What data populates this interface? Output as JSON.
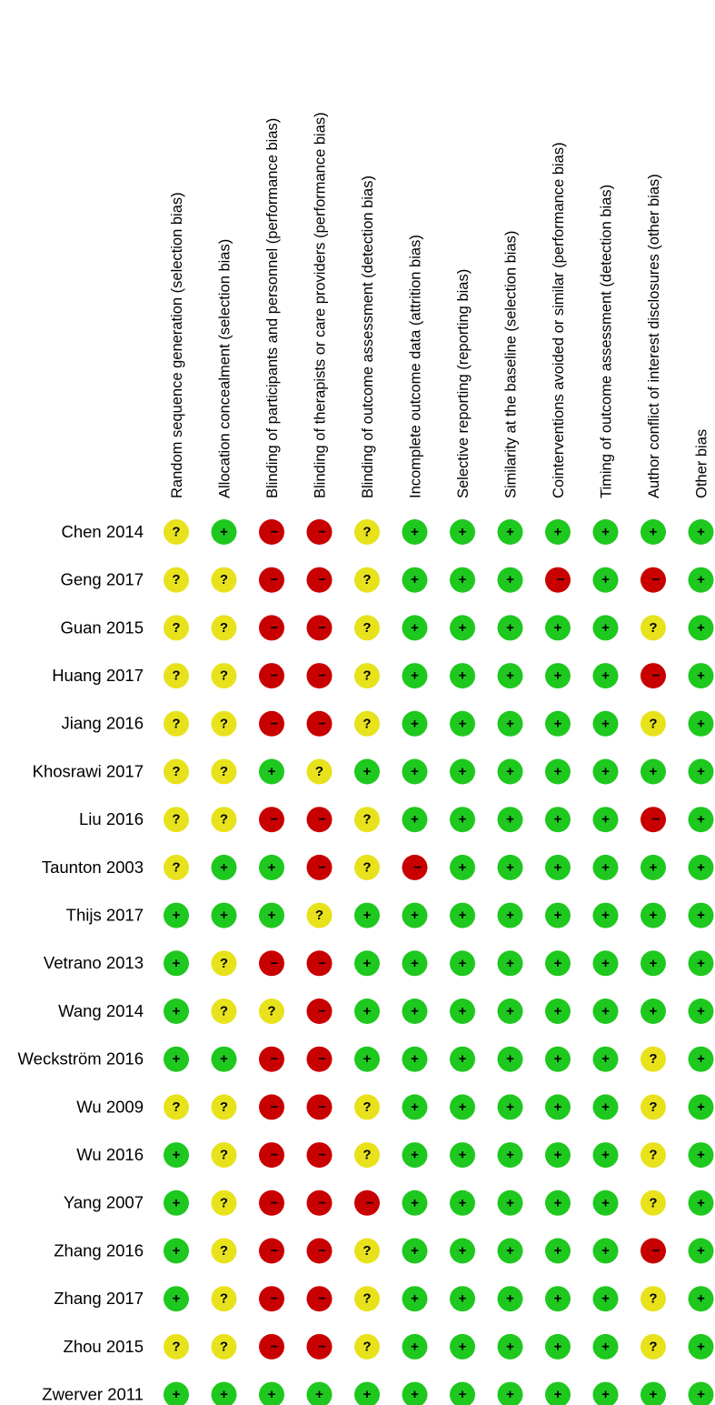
{
  "table": {
    "columns": [
      "Random sequence generation (selection bias)",
      "Allocation concealment (selection bias)",
      "Blinding of participants and personnel (performance bias)",
      "Blinding of therapists or care providers (performance bias)",
      "Blinding of outcome assessment (detection bias)",
      "Incomplete outcome data (attrition bias)",
      "Selective reporting (reporting bias)",
      "Similarity at the baseline (selection bias)",
      "Cointerventions avoided or similar (performance bias)",
      "Timing of outcome assessment (detection bias)",
      "Author conflict of interest disclosures (other bias)",
      "Other bias"
    ],
    "symbol_colors": {
      "+": "#1ec81e",
      "?": "#e8e21c",
      "−": "#c80000"
    },
    "rows": [
      {
        "study": "Chen 2014",
        "cells": [
          "?",
          "+",
          "−",
          "−",
          "?",
          "+",
          "+",
          "+",
          "+",
          "+",
          "+",
          "+"
        ]
      },
      {
        "study": "Geng 2017",
        "cells": [
          "?",
          "?",
          "−",
          "−",
          "?",
          "+",
          "+",
          "+",
          "−",
          "+",
          "−",
          "+"
        ]
      },
      {
        "study": "Guan 2015",
        "cells": [
          "?",
          "?",
          "−",
          "−",
          "?",
          "+",
          "+",
          "+",
          "+",
          "+",
          "?",
          "+"
        ]
      },
      {
        "study": "Huang 2017",
        "cells": [
          "?",
          "?",
          "−",
          "−",
          "?",
          "+",
          "+",
          "+",
          "+",
          "+",
          "−",
          "+"
        ]
      },
      {
        "study": "Jiang 2016",
        "cells": [
          "?",
          "?",
          "−",
          "−",
          "?",
          "+",
          "+",
          "+",
          "+",
          "+",
          "?",
          "+"
        ]
      },
      {
        "study": "Khosrawi 2017",
        "cells": [
          "?",
          "?",
          "+",
          "?",
          "+",
          "+",
          "+",
          "+",
          "+",
          "+",
          "+",
          "+"
        ]
      },
      {
        "study": "Liu 2016",
        "cells": [
          "?",
          "?",
          "−",
          "−",
          "?",
          "+",
          "+",
          "+",
          "+",
          "+",
          "−",
          "+"
        ]
      },
      {
        "study": "Taunton 2003",
        "cells": [
          "?",
          "+",
          "+",
          "−",
          "?",
          "−",
          "+",
          "+",
          "+",
          "+",
          "+",
          "+"
        ]
      },
      {
        "study": "Thijs 2017",
        "cells": [
          "+",
          "+",
          "+",
          "?",
          "+",
          "+",
          "+",
          "+",
          "+",
          "+",
          "+",
          "+"
        ]
      },
      {
        "study": "Vetrano 2013",
        "cells": [
          "+",
          "?",
          "−",
          "−",
          "+",
          "+",
          "+",
          "+",
          "+",
          "+",
          "+",
          "+"
        ]
      },
      {
        "study": "Wang 2014",
        "cells": [
          "+",
          "?",
          "?",
          "−",
          "+",
          "+",
          "+",
          "+",
          "+",
          "+",
          "+",
          "+"
        ]
      },
      {
        "study": "Weckström 2016",
        "cells": [
          "+",
          "+",
          "−",
          "−",
          "+",
          "+",
          "+",
          "+",
          "+",
          "+",
          "?",
          "+"
        ]
      },
      {
        "study": "Wu 2009",
        "cells": [
          "?",
          "?",
          "−",
          "−",
          "?",
          "+",
          "+",
          "+",
          "+",
          "+",
          "?",
          "+"
        ]
      },
      {
        "study": "Wu 2016",
        "cells": [
          "+",
          "?",
          "−",
          "−",
          "?",
          "+",
          "+",
          "+",
          "+",
          "+",
          "?",
          "+"
        ]
      },
      {
        "study": "Yang 2007",
        "cells": [
          "+",
          "?",
          "−",
          "−",
          "−",
          "+",
          "+",
          "+",
          "+",
          "+",
          "?",
          "+"
        ]
      },
      {
        "study": "Zhang 2016",
        "cells": [
          "+",
          "?",
          "−",
          "−",
          "?",
          "+",
          "+",
          "+",
          "+",
          "+",
          "−",
          "+"
        ]
      },
      {
        "study": "Zhang 2017",
        "cells": [
          "+",
          "?",
          "−",
          "−",
          "?",
          "+",
          "+",
          "+",
          "+",
          "+",
          "?",
          "+"
        ]
      },
      {
        "study": "Zhou 2015",
        "cells": [
          "?",
          "?",
          "−",
          "−",
          "?",
          "+",
          "+",
          "+",
          "+",
          "+",
          "?",
          "+"
        ]
      },
      {
        "study": "Zwerver 2011",
        "cells": [
          "+",
          "+",
          "+",
          "+",
          "+",
          "+",
          "+",
          "+",
          "+",
          "+",
          "+",
          "+"
        ]
      }
    ]
  }
}
